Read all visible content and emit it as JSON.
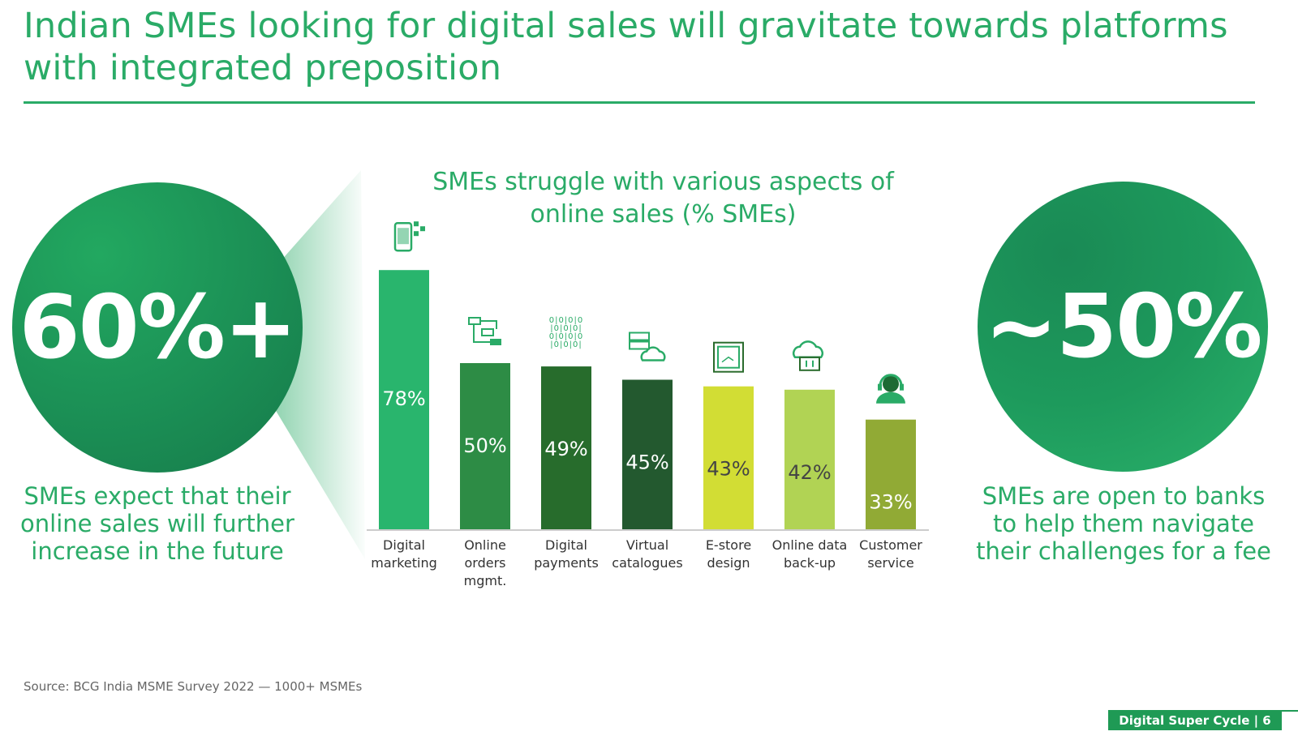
{
  "title": "Indian SMEs looking for digital sales will gravitate towards platforms with integrated preposition",
  "left_stat": {
    "value": "60%+",
    "caption": "SMEs expect that their online sales will further increase in the future"
  },
  "right_stat": {
    "value": "~50%",
    "caption": "SMEs are open to banks to help them navigate their challenges for a fee"
  },
  "source": "Source: BCG India MSME Survey 2022 — 1000+ MSMEs",
  "footer": "Digital Super Cycle | 6",
  "colors": {
    "accent": "#2aab67"
  },
  "chart_data": {
    "type": "bar",
    "title": "SMEs struggle with various aspects of online sales (% SMEs)",
    "categories": [
      "Digital marketing",
      "Online orders mgmt.",
      "Digital payments",
      "Virtual catalogues",
      "E-store design",
      "Online data back-up",
      "Customer service"
    ],
    "category_lines": [
      [
        "Digital",
        "marketing"
      ],
      [
        "Online",
        "orders",
        "mgmt."
      ],
      [
        "Digital",
        "payments"
      ],
      [
        "Virtual",
        "catalogues"
      ],
      [
        "E-store",
        "design"
      ],
      [
        "Online data",
        "back-up"
      ],
      [
        "Customer",
        "service"
      ]
    ],
    "values": [
      78,
      50,
      49,
      45,
      43,
      42,
      33
    ],
    "data_labels": [
      "78%",
      "50%",
      "49%",
      "45%",
      "43%",
      "42%",
      "33%"
    ],
    "bar_colors": [
      "#29b56d",
      "#2d8c45",
      "#276c2c",
      "#23592f",
      "#d2dd34",
      "#b1d354",
      "#91aa35"
    ],
    "label_colors": [
      "#ffffff",
      "#ffffff",
      "#ffffff",
      "#ffffff",
      "#444444",
      "#444444",
      "#ffffff"
    ],
    "icons": [
      "smartphone-icon",
      "workflow-icon",
      "binary-gear-icon",
      "server-cloud-icon",
      "design-frame-icon",
      "cloud-backup-icon",
      "headset-agent-icon"
    ],
    "ylim": [
      0,
      100
    ],
    "legend": "none",
    "grid": false
  }
}
